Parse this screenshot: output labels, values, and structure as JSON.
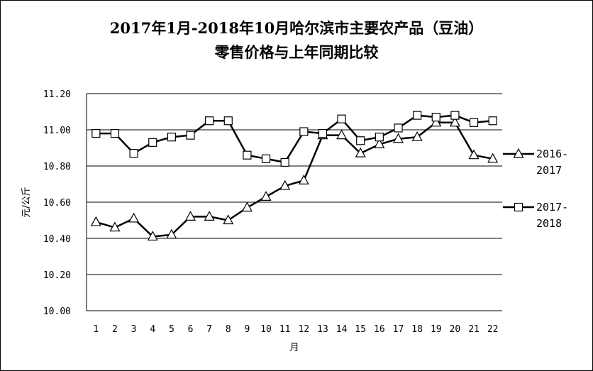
{
  "chart_data": {
    "type": "line",
    "title_line1": "2017年1月-2018年10月哈尔滨市主要农产品（豆油）",
    "title_line2": "零售价格与上年同期比较",
    "xlabel": "月",
    "ylabel": "元/公斤",
    "ylim": [
      10.0,
      11.2
    ],
    "yticks": [
      "10.00",
      "10.20",
      "10.40",
      "10.60",
      "10.80",
      "11.00",
      "11.20"
    ],
    "ytick_values": [
      10.0,
      10.2,
      10.4,
      10.6,
      10.8,
      11.0,
      11.2
    ],
    "categories": [
      "1",
      "2",
      "3",
      "4",
      "5",
      "6",
      "7",
      "8",
      "9",
      "10",
      "11",
      "12",
      "13",
      "14",
      "15",
      "16",
      "17",
      "18",
      "19",
      "20",
      "21",
      "22"
    ],
    "grid": "horizontal",
    "legend_position": "right",
    "series": [
      {
        "name_line1": "2016-",
        "name_line2": "2017",
        "marker": "triangle",
        "values": [
          10.49,
          10.46,
          10.51,
          10.41,
          10.42,
          10.52,
          10.52,
          10.5,
          10.57,
          10.63,
          10.69,
          10.72,
          10.97,
          10.97,
          10.87,
          10.92,
          10.95,
          10.96,
          11.04,
          11.04,
          10.86,
          10.84
        ]
      },
      {
        "name_line1": "2017-",
        "name_line2": "2018",
        "marker": "square",
        "values": [
          10.98,
          10.98,
          10.87,
          10.93,
          10.96,
          10.97,
          11.05,
          11.05,
          10.86,
          10.84,
          10.82,
          10.99,
          10.98,
          11.06,
          10.94,
          10.96,
          11.01,
          11.08,
          11.07,
          11.08,
          11.04,
          11.05
        ]
      }
    ]
  }
}
